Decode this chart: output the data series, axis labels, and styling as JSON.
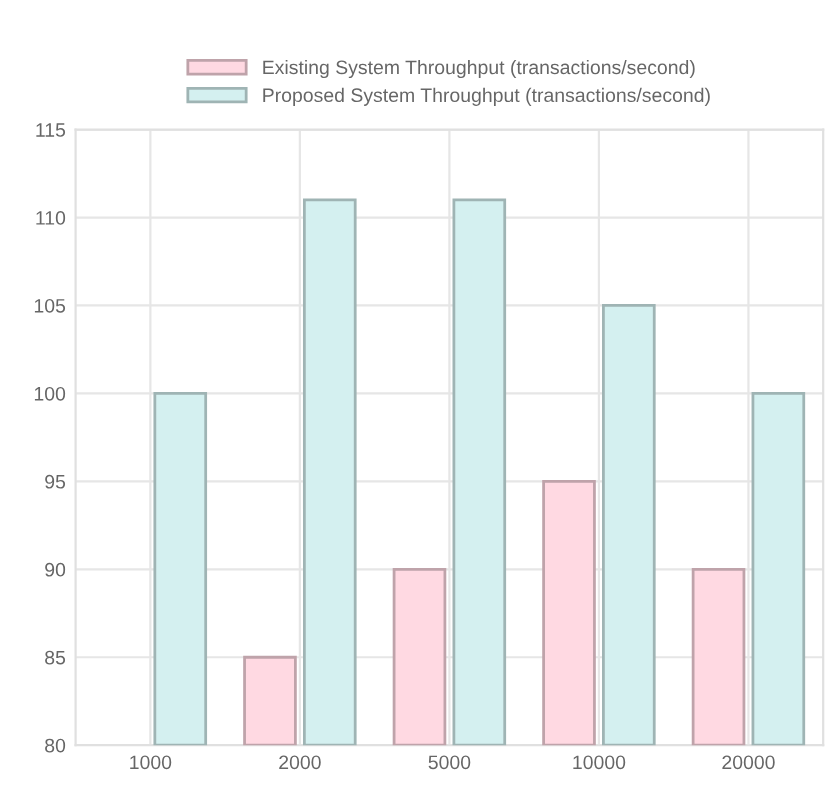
{
  "chart_data": {
    "type": "bar",
    "categories": [
      "1000",
      "2000",
      "5000",
      "10000",
      "20000"
    ],
    "series": [
      {
        "name": "Existing System Throughput (transactions/second)",
        "color": "#ffd9e2",
        "values": [
          null,
          85,
          90,
          95,
          90
        ]
      },
      {
        "name": "Proposed System Throughput (transactions/second)",
        "color": "#d4f0f0",
        "values": [
          100,
          111,
          111,
          105,
          100
        ]
      }
    ],
    "ylim": [
      80,
      115
    ],
    "yticks": [
      80,
      85,
      90,
      95,
      100,
      105,
      110,
      115
    ],
    "grid": true,
    "legend": "top"
  }
}
